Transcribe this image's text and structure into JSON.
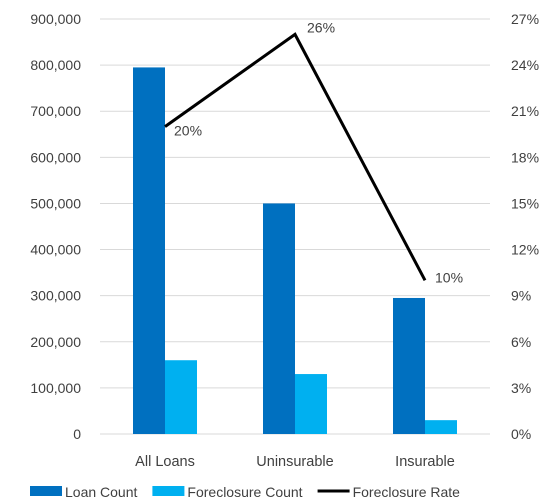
{
  "chart_data": {
    "type": "bar",
    "categories": [
      "All Loans",
      "Uninsurable",
      "Insurable"
    ],
    "series": [
      {
        "name": "Loan Count",
        "kind": "bar",
        "axis": "left",
        "color": "#0070C0",
        "values": [
          795000,
          500000,
          295000
        ]
      },
      {
        "name": "Foreclosure Count",
        "kind": "bar",
        "axis": "left",
        "color": "#00B0F0",
        "values": [
          160000,
          130000,
          30000
        ]
      },
      {
        "name": "Foreclosure Rate",
        "kind": "line",
        "axis": "right",
        "color": "#000000",
        "values": [
          20,
          26,
          10
        ],
        "labels": [
          "20%",
          "26%",
          "10%"
        ]
      }
    ],
    "y_left": {
      "min": 0,
      "max": 900000,
      "ticks": [
        "0",
        "100,000",
        "200,000",
        "300,000",
        "400,000",
        "500,000",
        "600,000",
        "700,000",
        "800,000",
        "900,000"
      ]
    },
    "y_right": {
      "min": 0,
      "max": 27,
      "ticks": [
        "0%",
        "3%",
        "6%",
        "9%",
        "12%",
        "15%",
        "18%",
        "21%",
        "24%",
        "27%"
      ]
    },
    "grid": true,
    "legend_position": "bottom"
  }
}
